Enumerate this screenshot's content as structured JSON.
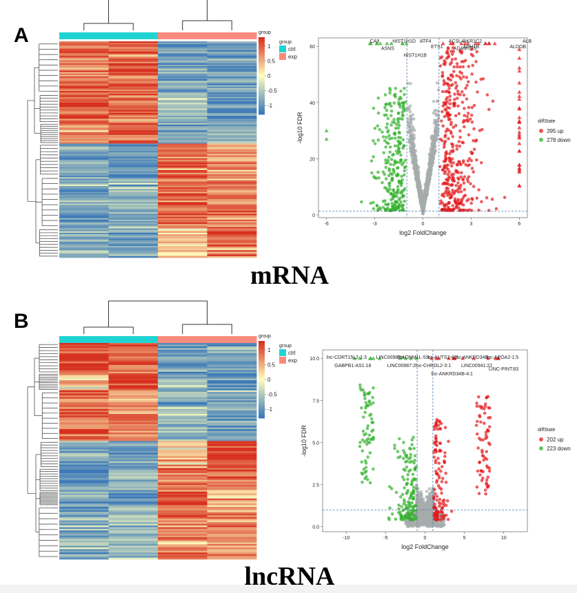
{
  "panels": [
    {
      "letter": "A",
      "caption": "mRNA"
    },
    {
      "letter": "B",
      "caption": "lncRNA"
    }
  ],
  "colors": {
    "ctrl": "#20d3d3",
    "exp": "#f88a7e",
    "up": "#e41a1c",
    "down": "#33b02c",
    "ns": "#a6adad",
    "heat_low": "#3c79b9",
    "heat_mid": "#fefebe",
    "heat_high": "#d7301f"
  },
  "chart_data": [
    {
      "type": "heatmap",
      "panel": "A",
      "columns": [
        "ctrl",
        "ctrl",
        "exp",
        "exp"
      ],
      "legend_title": "group",
      "group_legend": [
        "ctrl",
        "exp"
      ],
      "scale_ticks": [
        "1",
        "0.5",
        "0",
        "-0.5",
        "-1"
      ],
      "scale_range": [
        -1.3,
        1.3
      ],
      "row_blocks": [
        {
          "rows": 36,
          "pattern": [
            0.9,
            1.0,
            -0.9,
            -1.0
          ]
        },
        {
          "rows": 20,
          "pattern": [
            1.1,
            0.8,
            -0.6,
            -1.1
          ]
        },
        {
          "rows": 14,
          "pattern": [
            0.6,
            1.0,
            -1.0,
            -0.7
          ]
        },
        {
          "rows": 22,
          "pattern": [
            -0.8,
            -1.0,
            1.0,
            0.7
          ]
        },
        {
          "rows": 36,
          "pattern": [
            -0.9,
            -0.7,
            0.9,
            0.8
          ]
        },
        {
          "rows": 20,
          "pattern": [
            -0.8,
            -0.9,
            0.4,
            0.9
          ]
        }
      ]
    },
    {
      "type": "scatter",
      "panel": "A",
      "xlabel": "log2 FoldChange",
      "ylabel": "-log10 FDR",
      "xlim": [
        -6.5,
        6.5
      ],
      "ylim": [
        -1,
        63
      ],
      "xticks": [
        -6,
        -3,
        0,
        3,
        6
      ],
      "yticks": [
        0,
        20,
        40,
        60
      ],
      "hline": 1.3,
      "vlines": [
        -1,
        1
      ],
      "legend_title": "diffState",
      "series": [
        {
          "name": "395 up",
          "state": "up"
        },
        {
          "name": "278 down",
          "state": "down"
        }
      ],
      "labels": [
        {
          "text": "CA9",
          "x": -3.3,
          "y": 62
        },
        {
          "text": "HIST1H1D",
          "x": -1.9,
          "y": 62
        },
        {
          "text": "ATF4",
          "x": -0.2,
          "y": 62
        },
        {
          "text": "ASNS",
          "x": -2.6,
          "y": 59.5
        },
        {
          "text": "ETS1",
          "x": 0.5,
          "y": 60
        },
        {
          "text": "HIST1H1B",
          "x": -1.2,
          "y": 57
        },
        {
          "text": "ACSL4",
          "x": 1.6,
          "y": 62
        },
        {
          "text": "AKR1C2",
          "x": 2.5,
          "y": 62
        },
        {
          "text": "ADAMTS5",
          "x": 1.9,
          "y": 59.5
        },
        {
          "text": "ADH1B",
          "x": 2.5,
          "y": 60
        },
        {
          "text": "ALB",
          "x": 6.2,
          "y": 62
        },
        {
          "text": "ALDOB",
          "x": 5.4,
          "y": 60
        }
      ]
    },
    {
      "type": "heatmap",
      "panel": "B",
      "columns": [
        "ctrl",
        "ctrl",
        "exp",
        "exp"
      ],
      "legend_title": "group",
      "group_legend": [
        "ctrl",
        "exp"
      ],
      "scale_ticks": [
        "1",
        "0.5",
        "0",
        "-0.5",
        "-1"
      ],
      "scale_range": [
        -1.3,
        1.3
      ],
      "row_blocks": [
        {
          "rows": 18,
          "pattern": [
            1.2,
            0.9,
            -0.9,
            -0.9
          ]
        },
        {
          "rows": 10,
          "pattern": [
            0.2,
            1.2,
            -0.8,
            -1.0
          ]
        },
        {
          "rows": 30,
          "pattern": [
            0.9,
            0.8,
            -0.8,
            -0.9
          ]
        },
        {
          "rows": 16,
          "pattern": [
            -0.8,
            -0.9,
            0.3,
            1.2
          ]
        },
        {
          "rows": 14,
          "pattern": [
            -0.9,
            -0.8,
            0.8,
            0.9
          ]
        },
        {
          "rows": 8,
          "pattern": [
            -0.9,
            -1.0,
            1.3,
            0.5
          ]
        },
        {
          "rows": 32,
          "pattern": [
            -0.8,
            -0.7,
            0.8,
            0.6
          ]
        }
      ]
    },
    {
      "type": "scatter",
      "panel": "B",
      "xlabel": "log2 FoldChange",
      "ylabel": "-log10 FDR",
      "xlim": [
        -13,
        13
      ],
      "ylim": [
        -0.3,
        10.5
      ],
      "xticks": [
        -10,
        -5,
        0,
        5,
        10
      ],
      "yticks": [
        0.0,
        2.5,
        5.0,
        7.5,
        10.0
      ],
      "ytick_labels": [
        "0.0",
        "2.5",
        "5.0",
        "7.5",
        "10.0"
      ],
      "hline": 1.0,
      "vlines": [
        -1,
        1
      ],
      "legend_title": "diffState",
      "series": [
        {
          "name": "202 up",
          "state": "up"
        },
        {
          "name": "223 down",
          "state": "down"
        }
      ],
      "labels": [
        {
          "text": "lnc-CDRT15L2-1:3",
          "x": -12.5,
          "y": 10.1
        },
        {
          "text": "LINC00987:4",
          "x": -6.2,
          "y": 10.1
        },
        {
          "text": "GABPB1-AS1:18",
          "x": -11.5,
          "y": 9.6
        },
        {
          "text": "lnc-DNM1L-5:1",
          "x": -3.5,
          "y": 10.1
        },
        {
          "text": "LINC00987:2",
          "x": -4.8,
          "y": 9.6
        },
        {
          "text": "lnc-AUTS2-6:2",
          "x": 0.2,
          "y": 10.1
        },
        {
          "text": "lnc-CHRDL2-3:1",
          "x": -1.2,
          "y": 9.6
        },
        {
          "text": "lnc-ANKRD34B-4:1",
          "x": 0.8,
          "y": 9.1
        },
        {
          "text": "lnc-ANKRD34B",
          "x": 3.8,
          "y": 10.1
        },
        {
          "text": "lnc-APOA2-1:5",
          "x": 7.8,
          "y": 10.1
        },
        {
          "text": "LINC00941:22",
          "x": 4.6,
          "y": 9.6
        },
        {
          "text": "LINC-PINT:83",
          "x": 8.1,
          "y": 9.4
        }
      ]
    }
  ]
}
